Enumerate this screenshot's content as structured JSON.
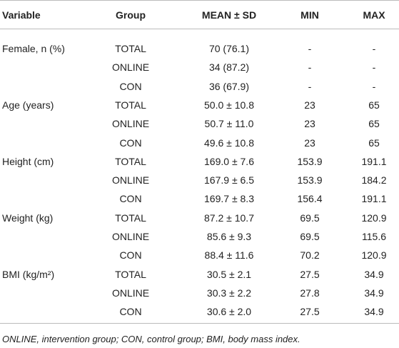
{
  "table": {
    "header": [
      "Variable",
      "Group",
      "MEAN ± SD",
      "MIN",
      "MAX"
    ],
    "variables": [
      {
        "name": "Female, n (%)",
        "rows": [
          [
            "TOTAL",
            "70 (76.1)",
            "-",
            "-"
          ],
          [
            "ONLINE",
            "34 (87.2)",
            "-",
            "-"
          ],
          [
            "CON",
            "36 (67.9)",
            "-",
            "-"
          ]
        ]
      },
      {
        "name": "Age (years)",
        "rows": [
          [
            "TOTAL",
            "50.0 ± 10.8",
            "23",
            "65"
          ],
          [
            "ONLINE",
            "50.7 ± 11.0",
            "23",
            "65"
          ],
          [
            "CON",
            "49.6 ± 10.8",
            "23",
            "65"
          ]
        ]
      },
      {
        "name": "Height (cm)",
        "rows": [
          [
            "TOTAL",
            "169.0 ± 7.6",
            "153.9",
            "191.1"
          ],
          [
            "ONLINE",
            "167.9 ± 6.5",
            "153.9",
            "184.2"
          ],
          [
            "CON",
            "169.7 ± 8.3",
            "156.4",
            "191.1"
          ]
        ]
      },
      {
        "name": "Weight (kg)",
        "rows": [
          [
            "TOTAL",
            "87.2 ± 10.7",
            "69.5",
            "120.9"
          ],
          [
            "ONLINE",
            "85.6 ± 9.3",
            "69.5",
            "115.6"
          ],
          [
            "CON",
            "88.4 ± 11.6",
            "70.2",
            "120.9"
          ]
        ]
      },
      {
        "name": "BMI (kg/m²)",
        "rows": [
          [
            "TOTAL",
            "30.5 ± 2.1",
            "27.5",
            "34.9"
          ],
          [
            "ONLINE",
            "30.3 ± 2.2",
            "27.8",
            "34.9"
          ],
          [
            "CON",
            "30.6 ± 2.0",
            "27.5",
            "34.9"
          ]
        ]
      }
    ],
    "footnote": "ONLINE, intervention group; CON, control group; BMI, body mass index."
  }
}
